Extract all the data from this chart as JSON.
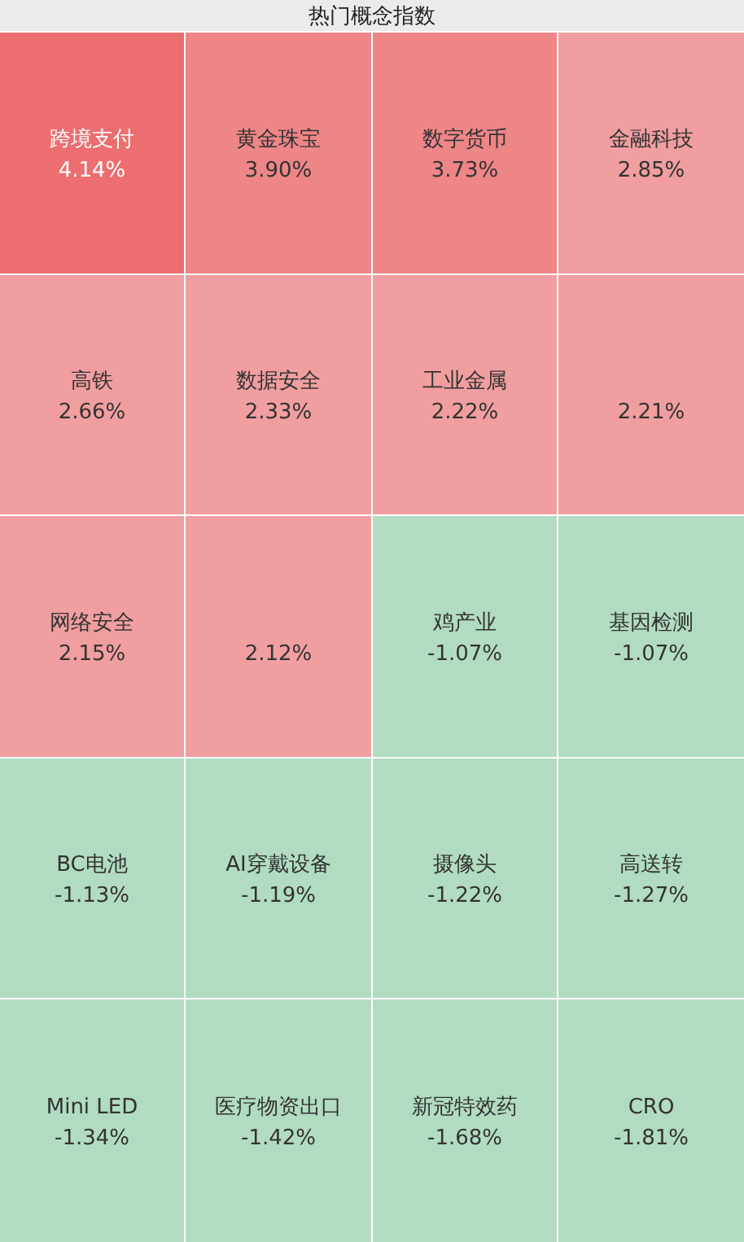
{
  "chart_data": {
    "type": "other",
    "title": "热门概念指数",
    "categories": [
      "跨境支付",
      "黄金珠宝",
      "数字货币",
      "金融科技",
      "高铁",
      "数据安全",
      "工业金属",
      null,
      "网络安全",
      null,
      "鸡产业",
      "基因检测",
      "BC电池",
      "AI穿戴设备",
      "摄像头",
      "高送转",
      "Mini LED",
      "医疗物资出口",
      "新冠特效药",
      "CRO"
    ],
    "values": [
      4.14,
      3.9,
      3.73,
      2.85,
      2.66,
      2.33,
      2.22,
      2.21,
      2.15,
      2.12,
      -1.07,
      -1.07,
      -1.13,
      -1.19,
      -1.22,
      -1.27,
      -1.34,
      -1.42,
      -1.68,
      -1.81
    ],
    "value_labels": [
      "4.14%",
      "3.90%",
      "3.73%",
      "2.85%",
      "2.66%",
      "2.33%",
      "2.22%",
      "2.21%",
      "2.15%",
      "2.12%",
      "-1.07%",
      "-1.07%",
      "-1.13%",
      "-1.19%",
      "-1.22%",
      "-1.27%",
      "-1.34%",
      "-1.42%",
      "-1.68%",
      "-1.81%"
    ],
    "colors": [
      "#ec6e70",
      "#ee8587",
      "#ee8587",
      "#f09e9f",
      "#f09e9f",
      "#f09e9f",
      "#f09e9f",
      "#f09e9f",
      "#f09e9f",
      "#f09e9f",
      "#b1dcc2",
      "#b1dcc2",
      "#b1dcc2",
      "#b1dcc2",
      "#b1dcc2",
      "#b1dcc2",
      "#b1dcc2",
      "#b1dcc2",
      "#b1dcc2",
      "#b1dcc2"
    ]
  }
}
